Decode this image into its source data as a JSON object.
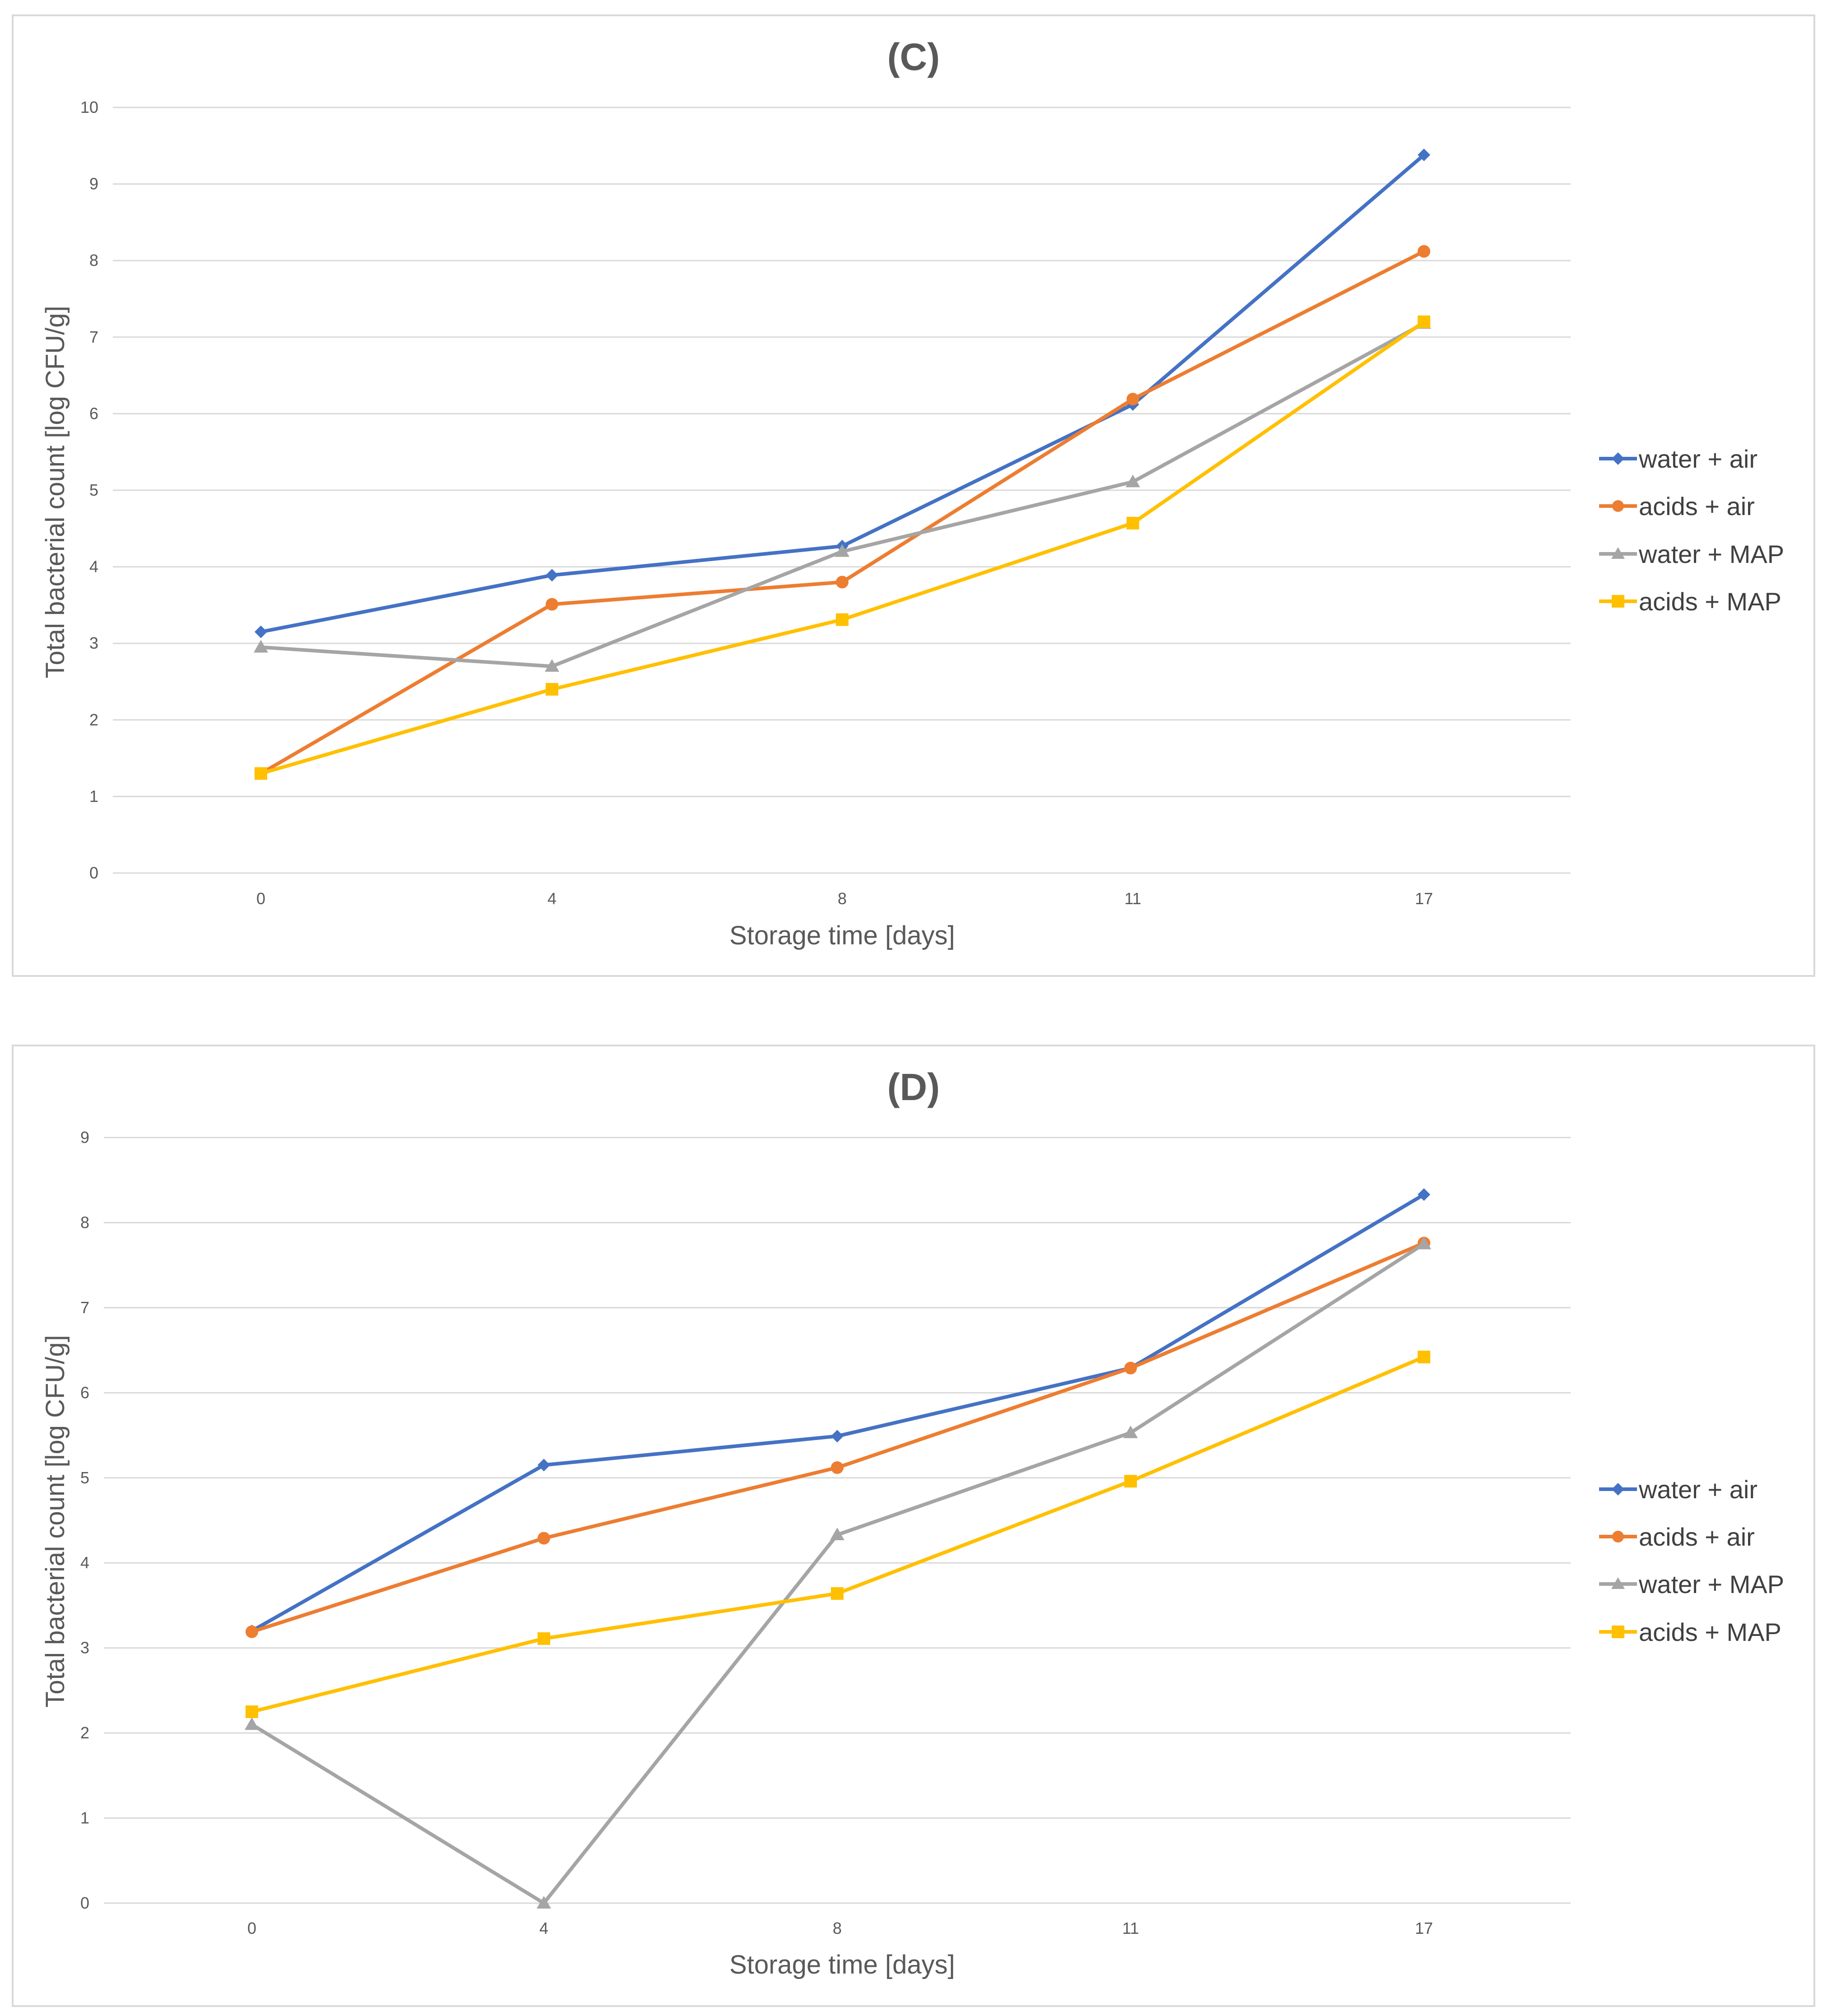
{
  "chart_data": [
    {
      "type": "line",
      "title": "(C)",
      "xlabel": "Storage time [days]",
      "ylabel": "Total bacterial count [log CFU/g]",
      "categories": [
        "0",
        "4",
        "8",
        "11",
        "17"
      ],
      "ylim": [
        0,
        10
      ],
      "yticks": [
        "0",
        "1",
        "2",
        "3",
        "4",
        "5",
        "6",
        "7",
        "8",
        "9",
        "10"
      ],
      "grid": true,
      "legend": "right",
      "series": [
        {
          "name": "water + air",
          "color": "#4472C4",
          "marker": "diamond",
          "values": [
            3.15,
            3.89,
            4.27,
            6.12,
            9.38
          ]
        },
        {
          "name": "acids + air",
          "color": "#ED7D31",
          "marker": "circle",
          "values": [
            1.3,
            3.51,
            3.8,
            6.19,
            8.12
          ]
        },
        {
          "name": "water + MAP",
          "color": "#A5A5A5",
          "marker": "triangle",
          "values": [
            2.95,
            2.7,
            4.2,
            5.11,
            7.18
          ]
        },
        {
          "name": "acids + MAP",
          "color": "#FFC000",
          "marker": "square",
          "values": [
            1.3,
            2.4,
            3.31,
            4.57,
            7.2
          ]
        }
      ]
    },
    {
      "type": "line",
      "title": "(D)",
      "xlabel": "Storage time [days]",
      "ylabel": "Total bacterial count [log CFU/g]",
      "categories": [
        "0",
        "4",
        "8",
        "11",
        "17"
      ],
      "ylim": [
        0,
        9
      ],
      "yticks": [
        "0",
        "1",
        "2",
        "3",
        "4",
        "5",
        "6",
        "7",
        "8",
        "9"
      ],
      "grid": true,
      "legend": "right",
      "series": [
        {
          "name": "water + air",
          "color": "#4472C4",
          "marker": "diamond",
          "values": [
            3.2,
            5.15,
            5.49,
            6.29,
            8.33
          ]
        },
        {
          "name": "acids + air",
          "color": "#ED7D31",
          "marker": "circle",
          "values": [
            3.19,
            4.29,
            5.12,
            6.29,
            7.76
          ]
        },
        {
          "name": "water + MAP",
          "color": "#A5A5A5",
          "marker": "triangle",
          "values": [
            2.1,
            0.0,
            4.33,
            5.53,
            7.75
          ]
        },
        {
          "name": "acids + MAP",
          "color": "#FFC000",
          "marker": "square",
          "values": [
            2.25,
            3.11,
            3.64,
            4.96,
            6.42
          ]
        }
      ]
    }
  ]
}
